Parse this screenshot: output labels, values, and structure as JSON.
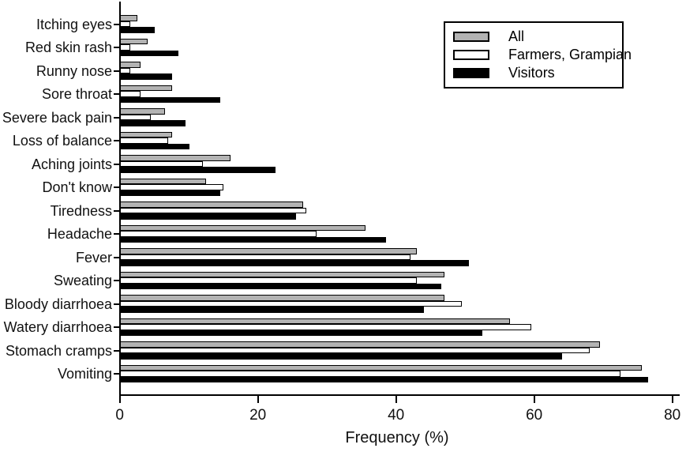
{
  "chart_data": {
    "type": "bar",
    "orientation": "horizontal",
    "title": "",
    "xlabel": "Frequency (%)",
    "xlim": [
      0,
      80
    ],
    "xticks": [
      0,
      20,
      40,
      60,
      80
    ],
    "grid": false,
    "legend_position": "top-right",
    "bar_outline_color": "#000000",
    "categories": [
      "Itching eyes",
      "Red skin rash",
      "Runny nose",
      "Sore throat",
      "Severe back pain",
      "Loss of balance",
      "Aching joints",
      "Don't know",
      "Tiredness",
      "Headache",
      "Fever",
      "Sweating",
      "Bloody diarrhoea",
      "Watery diarrhoea",
      "Stomach cramps",
      "Vomiting"
    ],
    "series": [
      {
        "name": "All",
        "color": "#b3b3b3",
        "values": [
          2.5,
          4,
          3,
          7.5,
          6.5,
          7.5,
          16,
          12.5,
          26.5,
          35.5,
          43,
          47,
          47,
          56.5,
          69.5,
          75.5
        ]
      },
      {
        "name": "Farmers, Grampian",
        "color": "#ffffff",
        "values": [
          1.5,
          1.5,
          1.5,
          3,
          4.5,
          7,
          12,
          15,
          27,
          28.5,
          42,
          43,
          49.5,
          59.5,
          68,
          72.5
        ]
      },
      {
        "name": "Visitors",
        "color": "#000000",
        "values": [
          5,
          8.5,
          7.5,
          14.5,
          9.5,
          10,
          22.5,
          14.5,
          25.5,
          38.5,
          50.5,
          46.5,
          44,
          52.5,
          64,
          76.5
        ]
      }
    ]
  }
}
